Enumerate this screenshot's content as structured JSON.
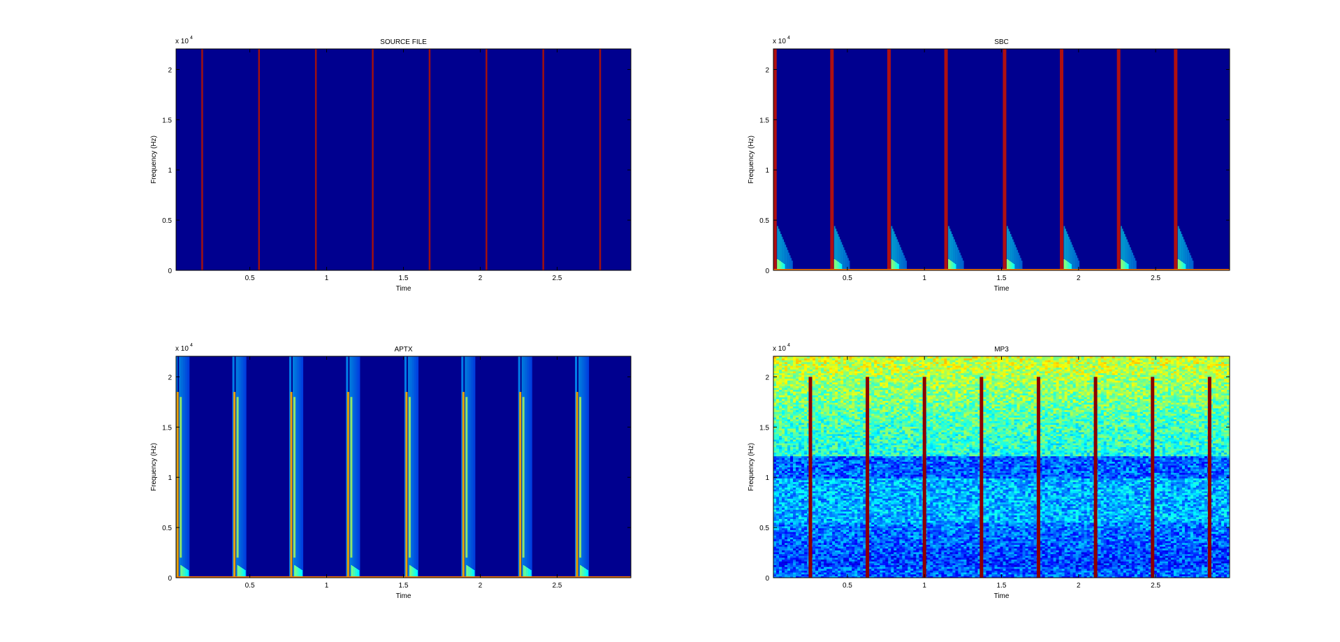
{
  "figure": {
    "background": "#ffffff",
    "colormap": "jet",
    "plot_background": "#00008f"
  },
  "chart_data": [
    {
      "type": "heatmap",
      "subtype": "spectrogram",
      "title": "SOURCE FILE",
      "xlabel": "Time",
      "ylabel": "Frequency (Hz)",
      "y_exponent": "x 10",
      "y_exponent_power": "4",
      "xlim": [
        0.02,
        2.98
      ],
      "ylim": [
        0,
        22050
      ],
      "xticks": [
        0.5,
        1,
        1.5,
        2,
        2.5
      ],
      "xtick_labels": [
        "0.5",
        "1",
        "1.5",
        "2",
        "2.5"
      ],
      "yticks": [
        0,
        5000,
        10000,
        15000,
        20000
      ],
      "ytick_labels": [
        "0",
        "0.5",
        "1",
        "1.5",
        "2"
      ],
      "pattern": "clean",
      "click_times": [
        0.19,
        0.56,
        0.93,
        1.3,
        1.67,
        2.04,
        2.41,
        2.78
      ],
      "click_color": "#a01010"
    },
    {
      "type": "heatmap",
      "subtype": "spectrogram",
      "title": "SBC",
      "xlabel": "Time",
      "ylabel": "Frequency (Hz)",
      "y_exponent": "x 10",
      "y_exponent_power": "4",
      "xlim": [
        0.02,
        2.98
      ],
      "ylim": [
        0,
        22050
      ],
      "xticks": [
        0.5,
        1,
        1.5,
        2,
        2.5
      ],
      "xtick_labels": [
        "0.5",
        "1",
        "1.5",
        "2",
        "2.5"
      ],
      "yticks": [
        0,
        5000,
        10000,
        15000,
        20000
      ],
      "ytick_labels": [
        "0",
        "0.5",
        "1",
        "1.5",
        "2"
      ],
      "pattern": "decay",
      "click_times": [
        0.03,
        0.4,
        0.77,
        1.14,
        1.52,
        1.89,
        2.26,
        2.63
      ],
      "click_color": "#b01010"
    },
    {
      "type": "heatmap",
      "subtype": "spectrogram",
      "title": "APTX",
      "xlabel": "Time",
      "ylabel": "Frequency (Hz)",
      "y_exponent": "x 10",
      "y_exponent_power": "4",
      "xlim": [
        0.02,
        2.98
      ],
      "ylim": [
        0,
        22050
      ],
      "xticks": [
        0.5,
        1,
        1.5,
        2,
        2.5
      ],
      "xtick_labels": [
        "0.5",
        "1",
        "1.5",
        "2",
        "2.5"
      ],
      "yticks": [
        0,
        5000,
        10000,
        15000,
        20000
      ],
      "ytick_labels": [
        "0",
        "0.5",
        "1",
        "1.5",
        "2"
      ],
      "pattern": "smear",
      "click_times": [
        0.03,
        0.4,
        0.77,
        1.14,
        1.52,
        1.89,
        2.26,
        2.63
      ],
      "click_color": "#e8a000"
    },
    {
      "type": "heatmap",
      "subtype": "spectrogram",
      "title": "MP3",
      "xlabel": "Time",
      "ylabel": "Frequency (Hz)",
      "y_exponent": "x 10",
      "y_exponent_power": "4",
      "xlim": [
        0.02,
        2.98
      ],
      "ylim": [
        0,
        22050
      ],
      "xticks": [
        0.5,
        1,
        1.5,
        2,
        2.5
      ],
      "xtick_labels": [
        "0.5",
        "1",
        "1.5",
        "2",
        "2.5"
      ],
      "yticks": [
        0,
        5000,
        10000,
        15000,
        20000
      ],
      "ytick_labels": [
        "0",
        "0.5",
        "1",
        "1.5",
        "2"
      ],
      "pattern": "noise",
      "click_times": [
        0.26,
        0.63,
        1.0,
        1.37,
        1.74,
        2.11,
        2.48,
        2.85
      ],
      "click_max_freq": 20000,
      "click_color": "#8b0000"
    }
  ]
}
